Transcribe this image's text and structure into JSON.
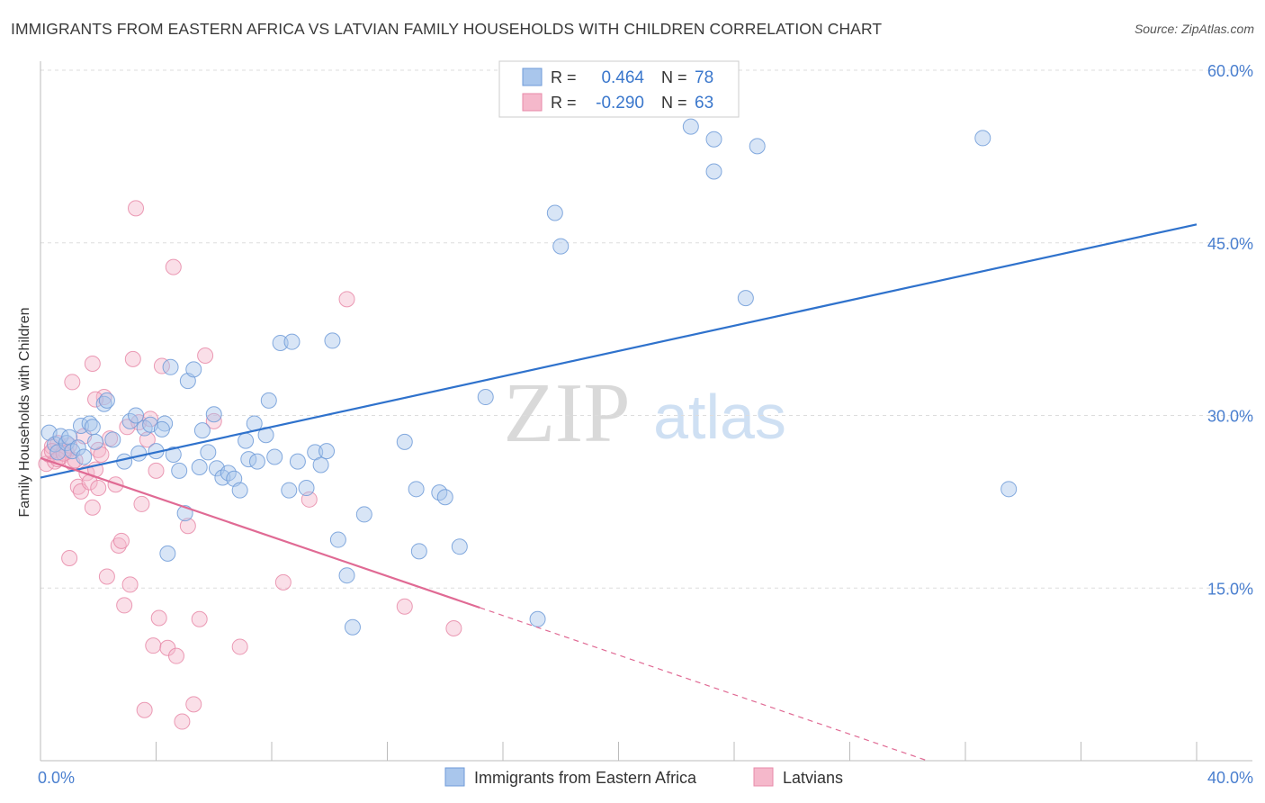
{
  "title": "IMMIGRANTS FROM EASTERN AFRICA VS LATVIAN FAMILY HOUSEHOLDS WITH CHILDREN CORRELATION CHART",
  "source": "Source: ZipAtlas.com",
  "watermark": {
    "zip": "ZIP",
    "atlas": "atlas"
  },
  "colors": {
    "blue_fill": "#a9c6ec",
    "blue_stroke": "#6f9bd8",
    "blue_line": "#2f72cc",
    "pink_fill": "#f5b8cb",
    "pink_stroke": "#e88aa8",
    "pink_line": "#e06a94",
    "tick_text": "#4a7fcf",
    "grid": "#dddddd"
  },
  "legend": {
    "rows": [
      {
        "r_label": "R =",
        "r_value": "0.464",
        "n_label": "N =",
        "n_value": "78"
      },
      {
        "r_label": "R =",
        "r_value": "-0.290",
        "n_label": "N =",
        "n_value": "63"
      }
    ]
  },
  "bottom_legend": [
    "Immigrants from Eastern Africa",
    "Latvians"
  ],
  "chart_data": {
    "type": "scatter",
    "title": "IMMIGRANTS FROM EASTERN AFRICA VS LATVIAN FAMILY HOUSEHOLDS WITH CHILDREN CORRELATION CHART",
    "xlabel": "",
    "ylabel": "Family Households with Children",
    "xlim": [
      0,
      40
    ],
    "ylim": [
      0,
      60
    ],
    "x_tick_labels": [
      "0.0%",
      "40.0%"
    ],
    "y_ticks": [
      15,
      30,
      45,
      60
    ],
    "y_tick_labels": [
      "15.0%",
      "30.0%",
      "45.0%",
      "60.0%"
    ],
    "grid": true,
    "legend_position": "top-center",
    "series": [
      {
        "name": "Immigrants from Eastern Africa",
        "color": "#a9c6ec",
        "R": 0.464,
        "N": 78,
        "trend": {
          "x": [
            0,
            40
          ],
          "y": [
            24.6,
            46.6
          ],
          "style": "solid"
        },
        "points": [
          [
            0.3,
            28.5
          ],
          [
            0.5,
            27.5
          ],
          [
            0.6,
            26.8
          ],
          [
            0.7,
            28.2
          ],
          [
            0.9,
            27.6
          ],
          [
            1.0,
            28.1
          ],
          [
            1.1,
            26.9
          ],
          [
            1.3,
            27.2
          ],
          [
            1.4,
            29.1
          ],
          [
            1.5,
            26.4
          ],
          [
            1.7,
            29.3
          ],
          [
            1.8,
            29.0
          ],
          [
            1.9,
            27.7
          ],
          [
            2.2,
            31.0
          ],
          [
            2.3,
            31.3
          ],
          [
            2.5,
            27.9
          ],
          [
            2.9,
            26.0
          ],
          [
            3.1,
            29.5
          ],
          [
            3.3,
            30.0
          ],
          [
            3.4,
            26.7
          ],
          [
            3.6,
            28.9
          ],
          [
            3.8,
            29.2
          ],
          [
            4.0,
            26.9
          ],
          [
            4.3,
            29.3
          ],
          [
            4.2,
            28.8
          ],
          [
            4.4,
            18.0
          ],
          [
            4.5,
            34.2
          ],
          [
            4.6,
            26.6
          ],
          [
            4.8,
            25.2
          ],
          [
            5.0,
            21.5
          ],
          [
            5.1,
            33.0
          ],
          [
            5.3,
            34.0
          ],
          [
            5.5,
            25.5
          ],
          [
            5.6,
            28.7
          ],
          [
            5.8,
            26.8
          ],
          [
            6.0,
            30.1
          ],
          [
            6.1,
            25.4
          ],
          [
            6.3,
            24.6
          ],
          [
            6.5,
            25.0
          ],
          [
            6.7,
            24.5
          ],
          [
            6.9,
            23.5
          ],
          [
            7.1,
            27.8
          ],
          [
            7.2,
            26.2
          ],
          [
            7.4,
            29.3
          ],
          [
            7.5,
            26.0
          ],
          [
            7.8,
            28.3
          ],
          [
            7.9,
            31.3
          ],
          [
            8.1,
            26.4
          ],
          [
            8.3,
            36.3
          ],
          [
            8.6,
            23.5
          ],
          [
            8.7,
            36.4
          ],
          [
            8.9,
            26.0
          ],
          [
            9.2,
            23.7
          ],
          [
            9.5,
            26.8
          ],
          [
            9.7,
            25.7
          ],
          [
            9.9,
            26.9
          ],
          [
            10.1,
            36.5
          ],
          [
            10.3,
            19.2
          ],
          [
            10.6,
            16.1
          ],
          [
            10.8,
            11.6
          ],
          [
            11.2,
            21.4
          ],
          [
            12.6,
            27.7
          ],
          [
            13.0,
            23.6
          ],
          [
            13.1,
            18.2
          ],
          [
            13.8,
            23.3
          ],
          [
            14.0,
            22.9
          ],
          [
            14.5,
            18.6
          ],
          [
            15.4,
            31.6
          ],
          [
            17.2,
            12.3
          ],
          [
            17.8,
            47.6
          ],
          [
            18.0,
            44.7
          ],
          [
            22.5,
            55.1
          ],
          [
            23.3,
            54.0
          ],
          [
            23.3,
            51.2
          ],
          [
            24.4,
            40.2
          ],
          [
            24.8,
            53.4
          ],
          [
            32.6,
            54.1
          ],
          [
            33.5,
            23.6
          ]
        ]
      },
      {
        "name": "Latvians",
        "color": "#f5b8cb",
        "R": -0.29,
        "N": 63,
        "trend": {
          "x": [
            0,
            15.2,
            40
          ],
          "y": [
            26.3,
            13.3,
            -8.0
          ],
          "style": "solid-then-dashed"
        },
        "points": [
          [
            0.2,
            25.8
          ],
          [
            0.3,
            26.6
          ],
          [
            0.4,
            27.3
          ],
          [
            0.5,
            26.0
          ],
          [
            0.6,
            27.6
          ],
          [
            0.7,
            26.4
          ],
          [
            0.8,
            27.0
          ],
          [
            0.9,
            26.8
          ],
          [
            1.0,
            27.4
          ],
          [
            1.1,
            25.9
          ],
          [
            1.2,
            26.1
          ],
          [
            1.3,
            23.8
          ],
          [
            1.4,
            23.4
          ],
          [
            1.5,
            28.2
          ],
          [
            1.6,
            25.0
          ],
          [
            1.7,
            24.2
          ],
          [
            1.8,
            22.0
          ],
          [
            1.9,
            25.3
          ],
          [
            2.0,
            27.0
          ],
          [
            2.1,
            26.6
          ],
          [
            2.2,
            31.6
          ],
          [
            2.3,
            16.0
          ],
          [
            2.4,
            28.0
          ],
          [
            2.6,
            24.0
          ],
          [
            2.7,
            18.7
          ],
          [
            2.8,
            19.1
          ],
          [
            2.9,
            13.5
          ],
          [
            3.0,
            29.0
          ],
          [
            3.1,
            15.3
          ],
          [
            3.2,
            34.9
          ],
          [
            3.3,
            48.0
          ],
          [
            3.4,
            29.4
          ],
          [
            3.5,
            22.3
          ],
          [
            3.6,
            4.4
          ],
          [
            3.7,
            27.9
          ],
          [
            3.8,
            29.7
          ],
          [
            3.9,
            10.0
          ],
          [
            4.0,
            25.2
          ],
          [
            4.1,
            12.4
          ],
          [
            4.2,
            34.3
          ],
          [
            4.4,
            9.8
          ],
          [
            4.6,
            42.9
          ],
          [
            4.7,
            9.1
          ],
          [
            4.9,
            3.4
          ],
          [
            5.1,
            20.4
          ],
          [
            5.3,
            4.9
          ],
          [
            5.5,
            12.3
          ],
          [
            5.7,
            35.2
          ],
          [
            6.0,
            29.5
          ],
          [
            6.9,
            9.9
          ],
          [
            8.4,
            15.5
          ],
          [
            9.3,
            22.7
          ],
          [
            10.6,
            40.1
          ],
          [
            12.6,
            13.4
          ],
          [
            14.3,
            11.5
          ],
          [
            1.0,
            17.6
          ],
          [
            1.1,
            32.9
          ],
          [
            1.8,
            34.5
          ],
          [
            1.9,
            31.4
          ],
          [
            2.0,
            23.7
          ],
          [
            0.4,
            26.9
          ],
          [
            0.6,
            26.2
          ],
          [
            0.8,
            26.7
          ]
        ]
      }
    ]
  }
}
